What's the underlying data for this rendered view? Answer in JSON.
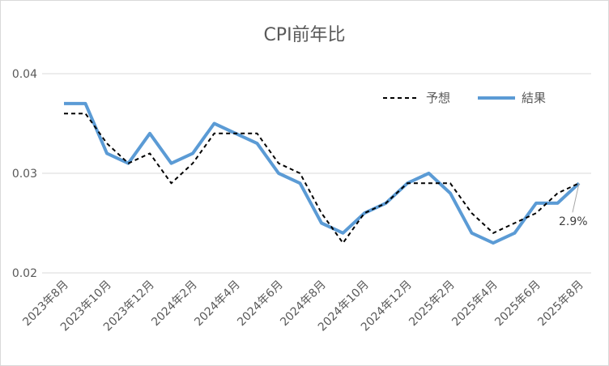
{
  "chart_data": {
    "type": "line",
    "title": "CPI前年比",
    "xlabel": "",
    "ylabel": "",
    "ylim": [
      0.02,
      0.04
    ],
    "yticks": [
      "0.02",
      "0.03",
      "0.04"
    ],
    "x_tick_labels": [
      "2023年8月",
      "2023年10月",
      "2023年12月",
      "2024年2月",
      "2024年4月",
      "2024年6月",
      "2024年8月",
      "2024年10月",
      "2024年12月",
      "2025年2月",
      "2025年4月",
      "2025年6月",
      "2025年8月"
    ],
    "categories": [
      "2023年8月",
      "2023年9月",
      "2023年10月",
      "2023年11月",
      "2023年12月",
      "2024年1月",
      "2024年2月",
      "2024年3月",
      "2024年4月",
      "2024年5月",
      "2024年6月",
      "2024年7月",
      "2024年8月",
      "2024年9月",
      "2024年10月",
      "2024年11月",
      "2024年12月",
      "2025年1月",
      "2025年2月",
      "2025年3月",
      "2025年4月",
      "2025年5月",
      "2025年6月",
      "2025年7月",
      "2025年8月"
    ],
    "series": [
      {
        "name": "予想",
        "style": "dashed",
        "color": "#000000",
        "values": [
          0.036,
          0.036,
          0.033,
          0.031,
          0.032,
          0.029,
          0.031,
          0.034,
          0.034,
          0.034,
          0.031,
          0.03,
          0.026,
          0.023,
          0.026,
          0.027,
          0.029,
          0.029,
          0.029,
          0.026,
          0.024,
          0.025,
          0.026,
          0.028,
          0.029
        ]
      },
      {
        "name": "結果",
        "style": "solid",
        "color": "#5b9bd5",
        "values": [
          0.037,
          0.037,
          0.032,
          0.031,
          0.034,
          0.031,
          0.032,
          0.035,
          0.034,
          0.033,
          0.03,
          0.029,
          0.025,
          0.024,
          0.026,
          0.027,
          0.029,
          0.03,
          0.028,
          0.024,
          0.023,
          0.024,
          0.027,
          0.027,
          0.029
        ]
      }
    ],
    "annotations": [
      {
        "text": "2.9%",
        "target": "2025年8月"
      }
    ],
    "legend_position": "top-right",
    "grid": true
  }
}
